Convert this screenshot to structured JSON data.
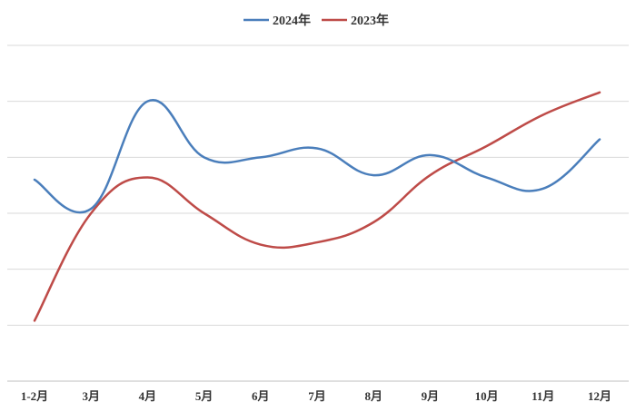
{
  "chart_data": {
    "type": "line",
    "categories": [
      "1-2月",
      "3月",
      "4月",
      "5月",
      "6月",
      "7月",
      "8月",
      "9月",
      "10月",
      "11月",
      "12月"
    ],
    "series": [
      {
        "name": "2024年",
        "color": "#4a7ebb",
        "values": [
          4.0,
          2.7,
          7.5,
          5.0,
          5.0,
          5.4,
          4.2,
          5.1,
          4.1,
          3.6,
          5.8
        ]
      },
      {
        "name": "2023年",
        "color": "#be4b48",
        "values": [
          -2.3,
          2.5,
          4.1,
          2.5,
          1.1,
          1.2,
          2.1,
          4.2,
          5.5,
          6.9,
          7.9
        ]
      }
    ],
    "xlabel": "",
    "ylabel": "",
    "ylim": [
      -5,
      10
    ],
    "grid": true,
    "legend": "top-center",
    "y_tick_labels_visible": false
  }
}
